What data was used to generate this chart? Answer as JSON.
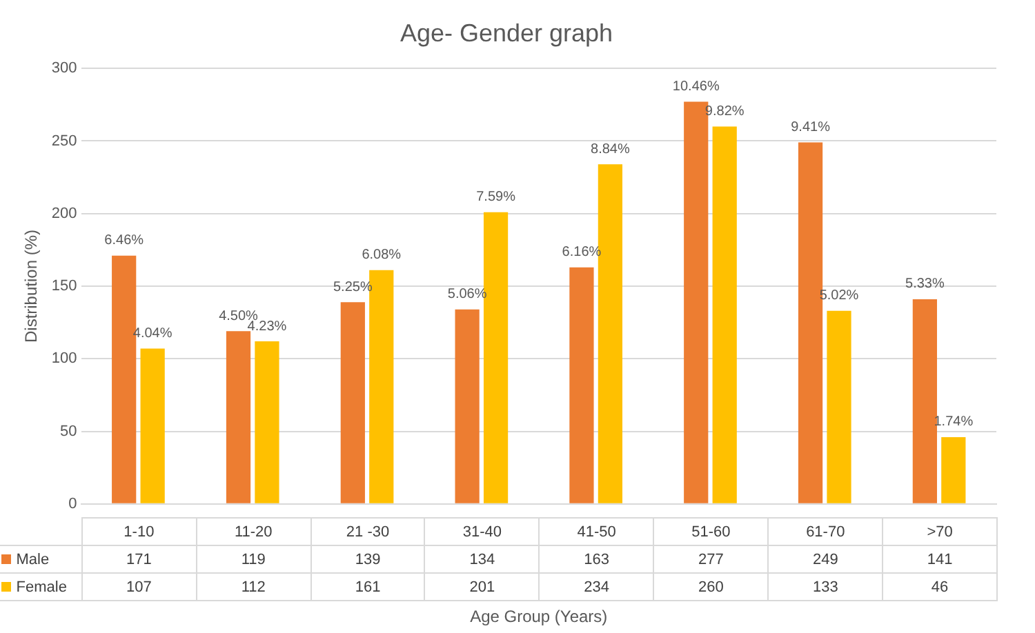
{
  "chart_data": {
    "type": "bar",
    "title": "Age- Gender graph",
    "xlabel": "Age Group (Years)",
    "ylabel": "Distribution (%)",
    "categories": [
      "1-10",
      "11-20",
      "21 -30",
      "31-40",
      "41-50",
      "51-60",
      "61-70",
      ">70"
    ],
    "series": [
      {
        "name": "Male",
        "color": "#ed7d31",
        "values": [
          171,
          119,
          139,
          134,
          163,
          277,
          249,
          141
        ]
      },
      {
        "name": "Female",
        "color": "#ffc000",
        "values": [
          107,
          112,
          161,
          201,
          234,
          260,
          133,
          46
        ]
      }
    ],
    "annotations": [
      {
        "text": "6.46%",
        "x": "1-10",
        "y": 171
      },
      {
        "text": "4.04%",
        "x": "1-10",
        "y": 107
      },
      {
        "text": "4.50%",
        "x": "11-20",
        "y": 119
      },
      {
        "text": "4.23%",
        "x": "11-20",
        "y": 112
      },
      {
        "text": "5.25%",
        "x": "21 -30",
        "y": 139
      },
      {
        "text": "6.08%",
        "x": "21 -30",
        "y": 161
      },
      {
        "text": "5.06%",
        "x": "31-40",
        "y": 134
      },
      {
        "text": "7.59%",
        "x": "31-40",
        "y": 201
      },
      {
        "text": "6.16%",
        "x": "41-50",
        "y": 163
      },
      {
        "text": "8.84%",
        "x": "41-50",
        "y": 234
      },
      {
        "text": "10.46%",
        "x": "51-60",
        "y": 277
      },
      {
        "text": "9.82%",
        "x": "51-60",
        "y": 260
      },
      {
        "text": "9.41%",
        "x": "61-70",
        "y": 249
      },
      {
        "text": "5.02%",
        "x": "61-70",
        "y": 133
      },
      {
        "text": "5.33%",
        "x": ">70",
        "y": 141
      },
      {
        "text": "1.74%",
        "x": ">70",
        "y": 46
      }
    ],
    "ylim": [
      0,
      300
    ],
    "yticks": [
      0,
      50,
      100,
      150,
      200,
      250,
      300
    ],
    "grid": "y",
    "legend": "bottom",
    "data_labels": true
  }
}
